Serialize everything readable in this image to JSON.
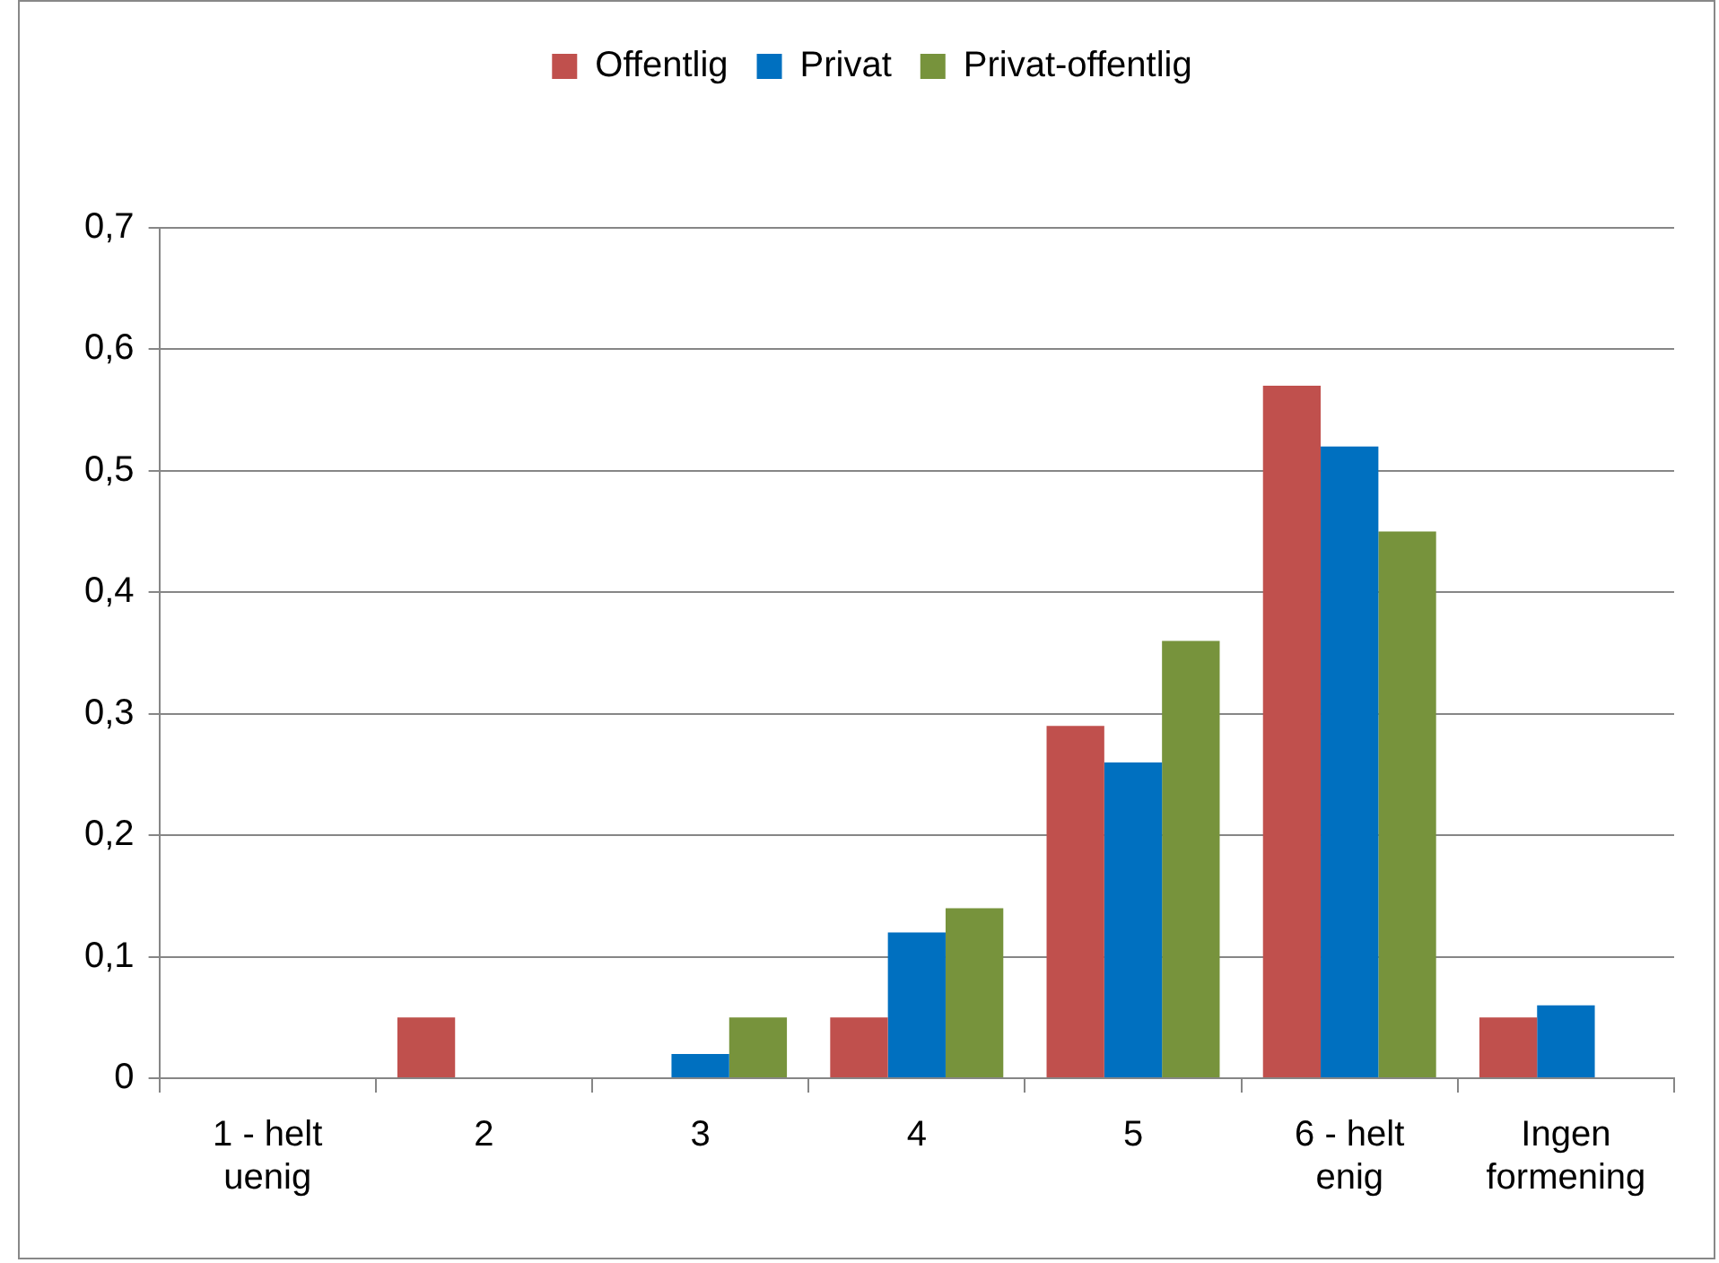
{
  "chart_data": {
    "type": "bar",
    "categories": [
      "1 - helt uenig",
      "2",
      "3",
      "4",
      "5",
      "6 - helt enig",
      "Ingen formening"
    ],
    "series": [
      {
        "name": "Offentlig",
        "color": "#c0504d",
        "values": [
          0,
          0.05,
          0,
          0.05,
          0.29,
          0.57,
          0.05
        ]
      },
      {
        "name": "Privat",
        "color": "#0070c0",
        "values": [
          0,
          0,
          0.02,
          0.12,
          0.26,
          0.52,
          0.06
        ]
      },
      {
        "name": "Privat-offentlig",
        "color": "#77933c",
        "values": [
          0,
          0,
          0.05,
          0.14,
          0.36,
          0.45,
          0
        ]
      }
    ],
    "ylim": [
      0,
      0.7
    ],
    "yticks": [
      {
        "value": 0,
        "label": "0"
      },
      {
        "value": 0.1,
        "label": "0,1"
      },
      {
        "value": 0.2,
        "label": "0,2"
      },
      {
        "value": 0.3,
        "label": "0,3"
      },
      {
        "value": 0.4,
        "label": "0,4"
      },
      {
        "value": 0.5,
        "label": "0,5"
      },
      {
        "value": 0.6,
        "label": "0,6"
      },
      {
        "value": 0.7,
        "label": "0,7"
      }
    ],
    "grid": "y",
    "legend": "top"
  }
}
